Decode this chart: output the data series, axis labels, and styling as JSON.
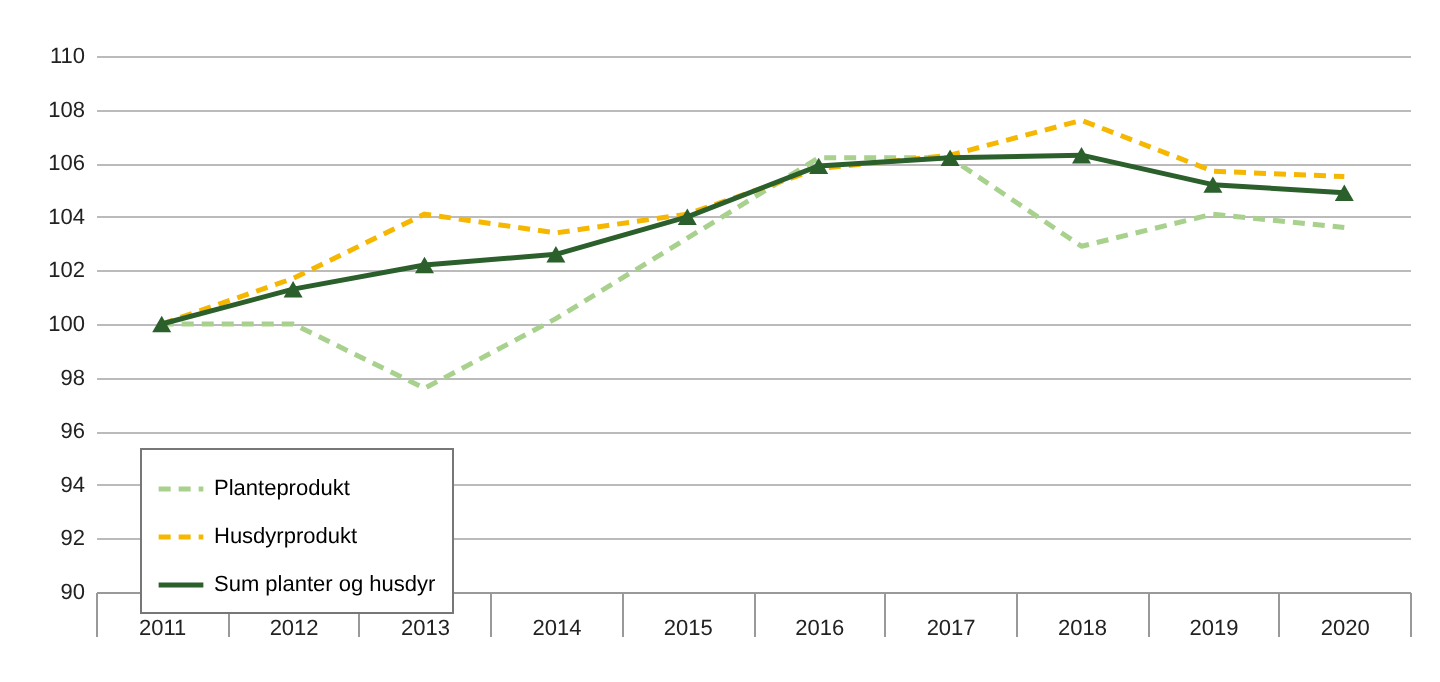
{
  "chart_data": {
    "type": "line",
    "categories": [
      "2011",
      "2012",
      "2013",
      "2014",
      "2015",
      "2016",
      "2017",
      "2018",
      "2019",
      "2020"
    ],
    "series": [
      {
        "name": "Planteprodukt",
        "color": "#a9d18e",
        "line_style": "dashed",
        "marker": "none",
        "values": [
          100,
          100,
          97.6,
          100.2,
          103.2,
          106.2,
          106.2,
          102.9,
          104.1,
          103.6
        ]
      },
      {
        "name": "Husdyrprodukt",
        "color": "#f5b700",
        "line_style": "dashed",
        "marker": "none",
        "values": [
          100,
          101.7,
          104.1,
          103.4,
          104.1,
          105.8,
          106.3,
          107.6,
          105.7,
          105.5
        ]
      },
      {
        "name": "Sum planter og husdyr",
        "color": "#2b5f2b",
        "line_style": "solid",
        "marker": "triangle",
        "values": [
          100,
          101.3,
          102.2,
          102.6,
          104.0,
          105.9,
          106.2,
          106.3,
          105.2,
          104.9
        ]
      }
    ],
    "ylim": [
      90,
      110
    ],
    "yticks": [
      90,
      92,
      94,
      96,
      98,
      100,
      102,
      104,
      106,
      108,
      110
    ],
    "grid": "y",
    "legend": "bottom left"
  }
}
